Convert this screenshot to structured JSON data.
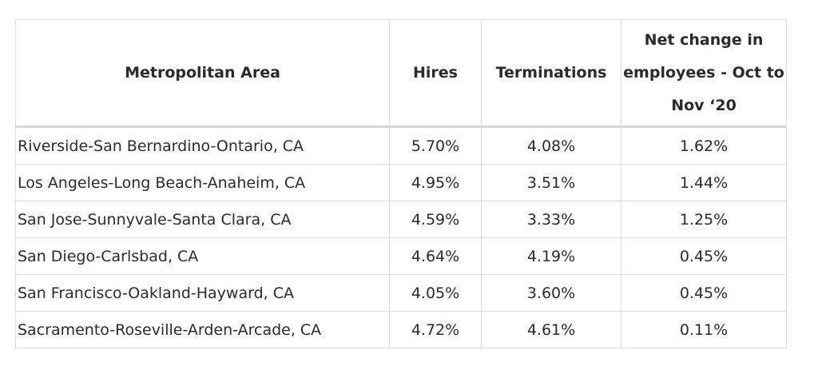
{
  "table": {
    "headers": {
      "area": "Metropolitan Area",
      "hires": "Hires",
      "terminations": "Terminations",
      "net_change": "Net change in employees - Oct to Nov ‘20"
    },
    "rows": [
      {
        "area": "Riverside-San Bernardino-Ontario, CA",
        "hires": "5.70%",
        "terminations": "4.08%",
        "net_change": "1.62%"
      },
      {
        "area": "Los Angeles-Long Beach-Anaheim, CA",
        "hires": "4.95%",
        "terminations": "3.51%",
        "net_change": "1.44%"
      },
      {
        "area": "San Jose-Sunnyvale-Santa Clara, CA",
        "hires": "4.59%",
        "terminations": "3.33%",
        "net_change": "1.25%"
      },
      {
        "area": "San Diego-Carlsbad, CA",
        "hires": "4.64%",
        "terminations": "4.19%",
        "net_change": "0.45%"
      },
      {
        "area": "San Francisco-Oakland-Hayward, CA",
        "hires": "4.05%",
        "terminations": "3.60%",
        "net_change": "0.45%"
      },
      {
        "area": "Sacramento-Roseville-Arden-Arcade, CA",
        "hires": "4.72%",
        "terminations": "4.61%",
        "net_change": "0.11%"
      }
    ]
  },
  "colors": {
    "text": "#2b2b2b",
    "border": "#dcdcdc",
    "background": "#ffffff"
  }
}
